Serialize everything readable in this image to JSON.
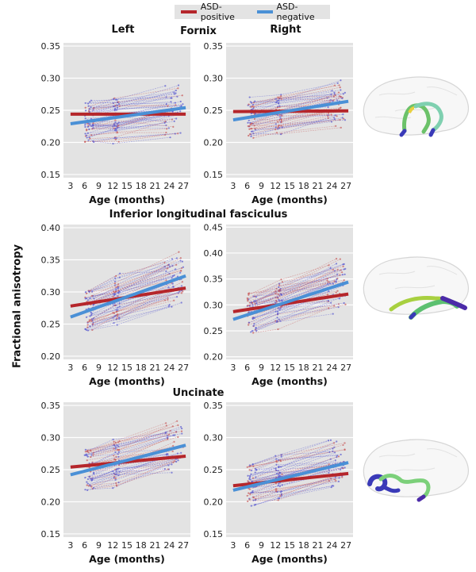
{
  "legend": {
    "items": [
      {
        "label": "ASD-positive",
        "color": "#b5262b"
      },
      {
        "label": "ASD-negative",
        "color": "#4a90d6"
      }
    ]
  },
  "column_titles": [
    "Left",
    "Right"
  ],
  "y_axis_label": "Fractional anisotropy",
  "colors": {
    "panel_bg": "#e3e3e3",
    "grid": "#ffffff",
    "asd_positive": "#b5262b",
    "asd_negative": "#4a90d6",
    "subject_line_blue": "#5a5ad0",
    "subject_line_red": "#c85a5a"
  },
  "chart_data": [
    {
      "type": "line",
      "tract": "Fornix",
      "hemisphere": "Left",
      "xlabel": "Age (months)",
      "ylabel": "Fractional anisotropy",
      "xticks": [
        3,
        6,
        9,
        12,
        15,
        18,
        21,
        24,
        27
      ],
      "yticks": [
        0.15,
        0.2,
        0.25,
        0.3,
        0.35
      ],
      "xlim": [
        1.5,
        28.5
      ],
      "ylim": [
        0.145,
        0.355
      ],
      "series": [
        {
          "name": "ASD-positive",
          "x": [
            3,
            27.5
          ],
          "y": [
            0.244,
            0.244
          ]
        },
        {
          "name": "ASD-negative",
          "x": [
            3,
            27.5
          ],
          "y": [
            0.229,
            0.254
          ]
        }
      ],
      "individual_trajectories": "many per-subject lines between ~6 and ~27 months, FA range ~0.17–0.32"
    },
    {
      "type": "line",
      "tract": "Fornix",
      "hemisphere": "Right",
      "xlabel": "Age (months)",
      "ylabel": "Fractional anisotropy",
      "xticks": [
        3,
        6,
        9,
        12,
        15,
        18,
        21,
        24,
        27
      ],
      "yticks": [
        0.15,
        0.2,
        0.25,
        0.3,
        0.35
      ],
      "xlim": [
        1.5,
        28.5
      ],
      "ylim": [
        0.145,
        0.355
      ],
      "series": [
        {
          "name": "ASD-positive",
          "x": [
            3,
            27.5
          ],
          "y": [
            0.248,
            0.249
          ]
        },
        {
          "name": "ASD-negative",
          "x": [
            3,
            27.5
          ],
          "y": [
            0.235,
            0.264
          ]
        }
      ],
      "individual_trajectories": "many per-subject lines between ~6 and ~27 months, FA range ~0.17–0.33"
    },
    {
      "type": "line",
      "tract": "Inferior longitudinal fasciculus",
      "hemisphere": "Left",
      "xlabel": "Age (months)",
      "ylabel": "Fractional anisotropy",
      "xticks": [
        3,
        6,
        9,
        12,
        15,
        18,
        21,
        24,
        27
      ],
      "yticks": [
        0.2,
        0.25,
        0.3,
        0.35,
        0.4
      ],
      "xlim": [
        1.5,
        28.5
      ],
      "ylim": [
        0.195,
        0.405
      ],
      "series": [
        {
          "name": "ASD-positive",
          "x": [
            3,
            27.5
          ],
          "y": [
            0.278,
            0.306
          ]
        },
        {
          "name": "ASD-negative",
          "x": [
            3,
            27.5
          ],
          "y": [
            0.261,
            0.325
          ]
        }
      ],
      "individual_trajectories": "many per-subject lines between ~6 and ~27 months, FA range ~0.23–0.37"
    },
    {
      "type": "line",
      "tract": "Inferior longitudinal fasciculus",
      "hemisphere": "Right",
      "xlabel": "Age (months)",
      "ylabel": "Fractional anisotropy",
      "xticks": [
        3,
        6,
        9,
        12,
        15,
        18,
        21,
        24,
        27
      ],
      "yticks": [
        0.2,
        0.25,
        0.3,
        0.35,
        0.4,
        0.45
      ],
      "xlim": [
        1.5,
        28.5
      ],
      "ylim": [
        0.195,
        0.455
      ],
      "series": [
        {
          "name": "ASD-positive",
          "x": [
            3,
            27.5
          ],
          "y": [
            0.287,
            0.321
          ]
        },
        {
          "name": "ASD-negative",
          "x": [
            3,
            27.5
          ],
          "y": [
            0.272,
            0.344
          ]
        }
      ],
      "individual_trajectories": "many per-subject lines between ~6 and ~27 months, FA range ~0.22–0.43"
    },
    {
      "type": "line",
      "tract": "Uncinate",
      "hemisphere": "Left",
      "xlabel": "Age (months)",
      "ylabel": "Fractional anisotropy",
      "xticks": [
        3,
        6,
        9,
        12,
        15,
        18,
        21,
        24,
        27
      ],
      "yticks": [
        0.15,
        0.2,
        0.25,
        0.3,
        0.35
      ],
      "xlim": [
        1.5,
        28.5
      ],
      "ylim": [
        0.145,
        0.355
      ],
      "series": [
        {
          "name": "ASD-positive",
          "x": [
            3,
            27.5
          ],
          "y": [
            0.254,
            0.271
          ]
        },
        {
          "name": "ASD-negative",
          "x": [
            3,
            27.5
          ],
          "y": [
            0.242,
            0.288
          ]
        }
      ],
      "individual_trajectories": "many per-subject lines between ~6 and ~27 months, FA range ~0.18–0.32"
    },
    {
      "type": "line",
      "tract": "Uncinate",
      "hemisphere": "Right",
      "xlabel": "Age (months)",
      "ylabel": "Fractional anisotropy",
      "xticks": [
        3,
        6,
        9,
        12,
        15,
        18,
        21,
        24,
        27
      ],
      "yticks": [
        0.15,
        0.2,
        0.25,
        0.3,
        0.35
      ],
      "xlim": [
        1.5,
        28.5
      ],
      "ylim": [
        0.145,
        0.355
      ],
      "series": [
        {
          "name": "ASD-positive",
          "x": [
            3,
            27.5
          ],
          "y": [
            0.225,
            0.244
          ]
        },
        {
          "name": "ASD-negative",
          "x": [
            3,
            27.5
          ],
          "y": [
            0.218,
            0.261
          ]
        }
      ],
      "individual_trajectories": "many per-subject lines between ~6 and ~27 months, FA range ~0.15–0.33"
    }
  ],
  "brain_images": [
    {
      "tract": "Fornix",
      "description": "3D brain rendering with fornix tract highlighted"
    },
    {
      "tract": "Inferior longitudinal fasciculus",
      "description": "3D brain rendering with ILF tract highlighted"
    },
    {
      "tract": "Uncinate",
      "description": "3D brain rendering with uncinate tract highlighted"
    }
  ]
}
